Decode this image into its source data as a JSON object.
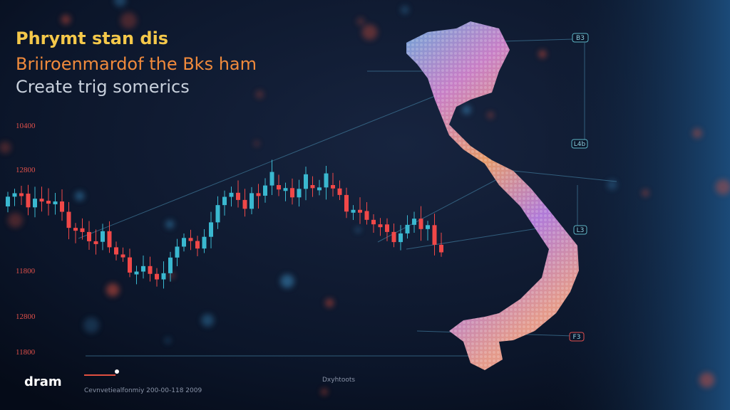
{
  "header": {
    "title": "Phrymt stan dis",
    "subtitle": "Briiroenmardof the Bks ham",
    "tagline": "Create trig somerics"
  },
  "axis_labels": [
    "10400",
    "12800",
    "11800",
    "12800",
    "11800"
  ],
  "map_labels": [
    "B3",
    "L4b",
    "L3",
    "F3"
  ],
  "footer": {
    "logo": "dram",
    "caption": "Cevnvetiealfonmiy 200-00-118 2009",
    "note": "Dxyhtoots"
  }
}
